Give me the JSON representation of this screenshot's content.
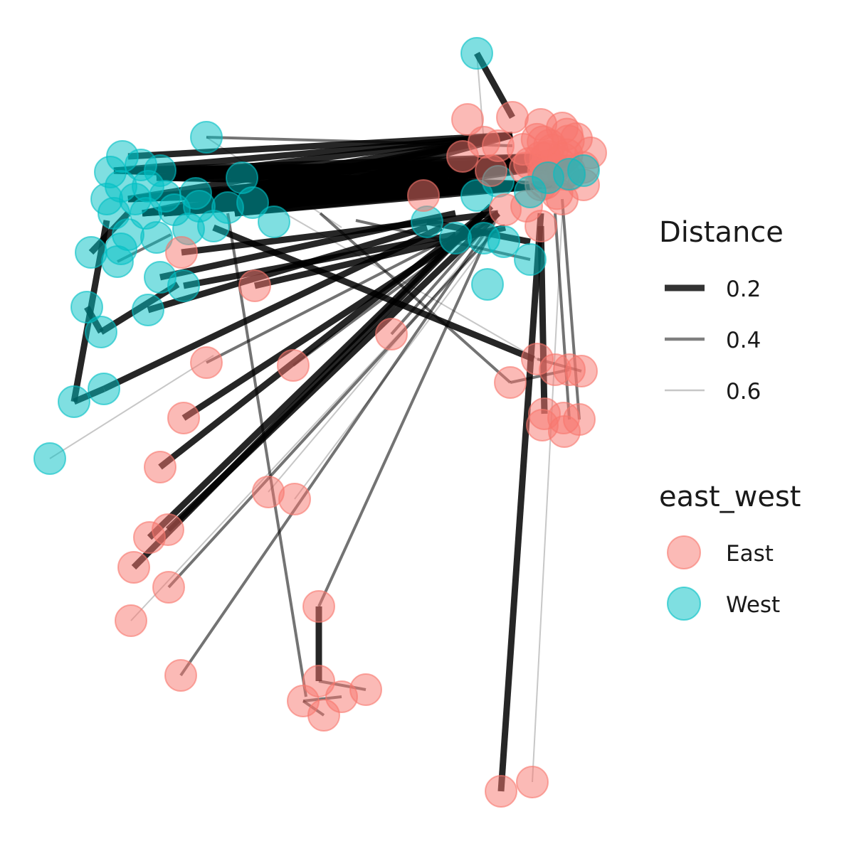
{
  "legends": {
    "distance": {
      "title": "Distance",
      "entries": [
        {
          "label": "0.2",
          "value": 0.2
        },
        {
          "label": "0.4",
          "value": 0.4
        },
        {
          "label": "0.6",
          "value": 0.6
        }
      ]
    },
    "group": {
      "title": "east_west",
      "entries": [
        {
          "label": "East",
          "color": "#F8766D"
        },
        {
          "label": "West",
          "color": "#00BFC4"
        }
      ]
    }
  },
  "colors": {
    "East": "#F8766D",
    "West": "#00BFC4",
    "edge": "#000000"
  },
  "edge_opacity_by_distance": {
    "0.2": 0.85,
    "0.4": 0.55,
    "0.6": 0.22
  },
  "edge_width_by_distance": {
    "0.2": 9,
    "0.4": 4,
    "0.6": 2
  }
}
